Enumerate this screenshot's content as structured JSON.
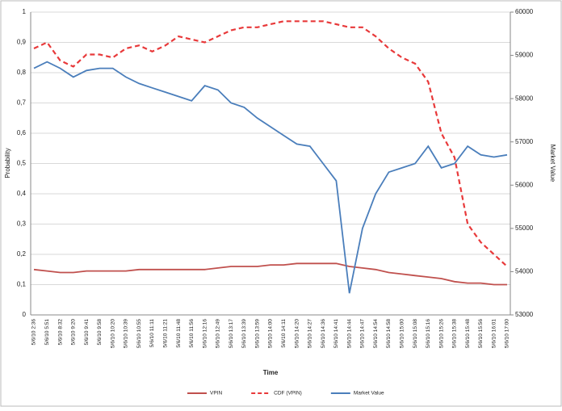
{
  "chart_data": {
    "type": "line",
    "y_label": "Probability",
    "y2_label": "Market Value",
    "x_label": "Time",
    "categories": [
      "5/6/10 2:36",
      "5/6/10 5:51",
      "5/6/10 8:32",
      "5/6/10 9:20",
      "5/6/10 9:41",
      "5/6/10 9:58",
      "5/6/10 10:20",
      "5/6/10 10:39",
      "5/6/10 10:55",
      "5/6/10 11:11",
      "5/6/10 11:21",
      "5/6/10 11:48",
      "5/6/10 11:56",
      "5/6/10 12:16",
      "5/6/10 12:49",
      "5/6/10 13:17",
      "5/6/10 13:39",
      "5/6/10 13:59",
      "5/6/10 14:00",
      "5/6/10 14:11",
      "5/6/10 14:20",
      "5/6/10 14:27",
      "5/6/10 14:36",
      "5/6/10 14:41",
      "5/6/10 14:44",
      "5/6/10 14:47",
      "5/6/10 14:54",
      "5/6/10 14:58",
      "5/6/10 15:00",
      "5/6/10 15:08",
      "5/6/10 15:16",
      "5/6/10 15:26",
      "5/6/10 15:38",
      "5/6/10 15:48",
      "5/6/10 15:56",
      "5/6/10 16:01",
      "5/6/10 17:00"
    ],
    "series": [
      {
        "name": "VPIN",
        "color": "#c0504d",
        "style": "solid",
        "axis": "y",
        "values": [
          0.15,
          0.145,
          0.14,
          0.14,
          0.145,
          0.145,
          0.145,
          0.145,
          0.15,
          0.15,
          0.15,
          0.15,
          0.15,
          0.15,
          0.155,
          0.16,
          0.16,
          0.16,
          0.165,
          0.165,
          0.17,
          0.17,
          0.17,
          0.17,
          0.16,
          0.155,
          0.15,
          0.14,
          0.135,
          0.13,
          0.125,
          0.12,
          0.11,
          0.105,
          0.105,
          0.1,
          0.1
        ]
      },
      {
        "name": "CDF (VPIN)",
        "color": "#e8393a",
        "style": "dashed",
        "axis": "y",
        "values": [
          0.88,
          0.9,
          0.84,
          0.82,
          0.86,
          0.86,
          0.85,
          0.88,
          0.89,
          0.87,
          0.89,
          0.92,
          0.91,
          0.9,
          0.92,
          0.94,
          0.95,
          0.95,
          0.96,
          0.97,
          0.97,
          0.97,
          0.97,
          0.96,
          0.95,
          0.95,
          0.92,
          0.88,
          0.85,
          0.83,
          0.77,
          0.6,
          0.52,
          0.3,
          0.24,
          0.2,
          0.16
        ]
      },
      {
        "name": "Market Value",
        "color": "#4a7ebb",
        "style": "solid",
        "axis": "y2",
        "values": [
          58700,
          58850,
          58700,
          58500,
          58650,
          58700,
          58700,
          58500,
          58350,
          58250,
          58150,
          58050,
          57950,
          58300,
          58200,
          57900,
          57800,
          57550,
          57350,
          57150,
          56950,
          56900,
          56500,
          56100,
          53500,
          55000,
          55800,
          56300,
          56400,
          56500,
          56900,
          56400,
          56500,
          56900,
          56700,
          56650,
          56700
        ]
      }
    ],
    "ylim": [
      0,
      1
    ],
    "yticks": [
      0,
      {
        "value": 0.1,
        "label": "0,1"
      },
      {
        "value": 0.2,
        "label": "0,2"
      },
      {
        "value": 0.3,
        "label": "0,3"
      },
      {
        "value": 0.4,
        "label": "0,4"
      },
      {
        "value": 0.5,
        "label": "0,5"
      },
      {
        "value": 0.6,
        "label": "0,6"
      },
      {
        "value": 0.7,
        "label": "0,7"
      },
      {
        "value": 0.8,
        "label": "0,8"
      },
      {
        "value": 0.9,
        "label": "0,9"
      },
      1
    ],
    "y2lim": [
      53000,
      60000
    ],
    "y2ticks": [
      53000,
      54000,
      55000,
      56000,
      57000,
      58000,
      59000,
      60000
    ],
    "grid": true,
    "legend": "bottom"
  }
}
